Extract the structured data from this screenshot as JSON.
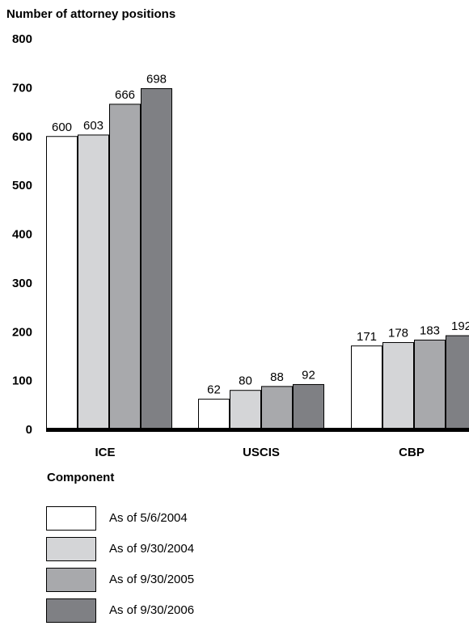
{
  "chart_data": {
    "type": "bar",
    "ylabel": "Number of attorney positions",
    "xlabel": "Component",
    "categories": [
      "ICE",
      "USCIS",
      "CBP"
    ],
    "ylim": [
      0,
      800
    ],
    "yticks": [
      "0",
      "100",
      "200",
      "300",
      "400",
      "500",
      "600",
      "700",
      "800"
    ],
    "series": [
      {
        "name": "As of 5/6/2004",
        "values": [
          600,
          62,
          171
        ],
        "color": "#ffffff"
      },
      {
        "name": "As of 9/30/2004",
        "values": [
          603,
          80,
          178
        ],
        "color": "#d4d5d7"
      },
      {
        "name": "As of 9/30/2005",
        "values": [
          666,
          88,
          183
        ],
        "color": "#a8a9ac"
      },
      {
        "name": "As of 9/30/2006",
        "values": [
          698,
          92,
          192
        ],
        "color": "#7f8084"
      }
    ],
    "grid": false,
    "legend_position": "bottom-left"
  }
}
